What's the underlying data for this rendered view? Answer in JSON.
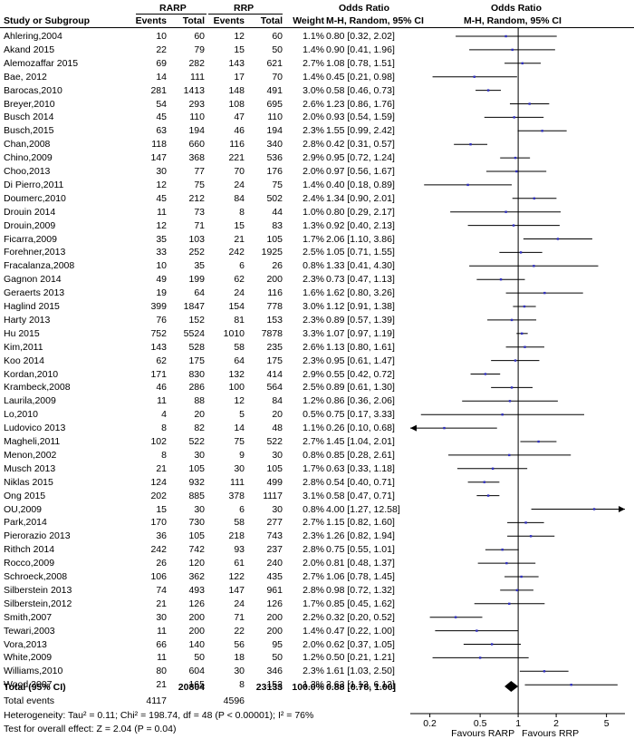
{
  "header": {
    "study_col": "Study or Subgroup",
    "group1": "RARP",
    "group2": "RRP",
    "events1": "Events",
    "total1": "Total",
    "events2": "Events",
    "total2": "Total",
    "weight": "Weight",
    "or_title": "Odds Ratio",
    "or_method": "M-H, Random, 95% CI",
    "plot_title": "Odds Ratio",
    "plot_method": "M-H, Random, 95% CI"
  },
  "total_row": {
    "label": "Total (95% CI)",
    "total1": "20804",
    "total2": "23133",
    "weight": "100.0%",
    "ci_text": "0.88 [0.78, 1.00]"
  },
  "events_row": {
    "label": "Total events",
    "events1": "4117",
    "events2": "4596"
  },
  "heterogeneity": "Heterogeneity: Tau² = 0.11; Chi² = 198.74, df = 48 (P < 0.00001); I² = 76%",
  "overall_effect": "Test for overall effect: Z = 2.04 (P = 0.04)",
  "chart_data": {
    "type": "forest",
    "x_scale": "log",
    "xlim": [
      0.14,
      7.0
    ],
    "reference_line": 1,
    "x_ticks": [
      "0.2",
      "0.5",
      "1",
      "2",
      "5"
    ],
    "x_tick_values": [
      0.2,
      0.5,
      1,
      2,
      5
    ],
    "favours_left": "Favours RARP",
    "favours_right": "Favours RRP",
    "summary": {
      "or": 0.88,
      "lo": 0.78,
      "hi": 1.0
    },
    "studies": [
      {
        "name": "Ahlering,2004",
        "e1": "10",
        "t1": "60",
        "e2": "12",
        "t2": "60",
        "w": "1.1%",
        "ci": "0.80 [0.32, 2.02]",
        "or": 0.8,
        "lo": 0.32,
        "hi": 2.02
      },
      {
        "name": "Akand 2015",
        "e1": "22",
        "t1": "79",
        "e2": "15",
        "t2": "50",
        "w": "1.4%",
        "ci": "0.90 [0.41, 1.96]",
        "or": 0.9,
        "lo": 0.41,
        "hi": 1.96
      },
      {
        "name": "Alemozaffar 2015",
        "e1": "69",
        "t1": "282",
        "e2": "143",
        "t2": "621",
        "w": "2.7%",
        "ci": "1.08 [0.78, 1.51]",
        "or": 1.08,
        "lo": 0.78,
        "hi": 1.51
      },
      {
        "name": "Bae, 2012",
        "e1": "14",
        "t1": "111",
        "e2": "17",
        "t2": "70",
        "w": "1.4%",
        "ci": "0.45 [0.21, 0.98]",
        "or": 0.45,
        "lo": 0.21,
        "hi": 0.98
      },
      {
        "name": "Barocas,2010",
        "e1": "281",
        "t1": "1413",
        "e2": "148",
        "t2": "491",
        "w": "3.0%",
        "ci": "0.58 [0.46, 0.73]",
        "or": 0.58,
        "lo": 0.46,
        "hi": 0.73
      },
      {
        "name": "Breyer,2010",
        "e1": "54",
        "t1": "293",
        "e2": "108",
        "t2": "695",
        "w": "2.6%",
        "ci": "1.23 [0.86, 1.76]",
        "or": 1.23,
        "lo": 0.86,
        "hi": 1.76
      },
      {
        "name": "Busch 2014",
        "e1": "45",
        "t1": "110",
        "e2": "47",
        "t2": "110",
        "w": "2.0%",
        "ci": "0.93 [0.54, 1.59]",
        "or": 0.93,
        "lo": 0.54,
        "hi": 1.59
      },
      {
        "name": "Busch,2015",
        "e1": "63",
        "t1": "194",
        "e2": "46",
        "t2": "194",
        "w": "2.3%",
        "ci": "1.55 [0.99, 2.42]",
        "or": 1.55,
        "lo": 0.99,
        "hi": 2.42
      },
      {
        "name": "Chan,2008",
        "e1": "118",
        "t1": "660",
        "e2": "116",
        "t2": "340",
        "w": "2.8%",
        "ci": "0.42 [0.31, 0.57]",
        "or": 0.42,
        "lo": 0.31,
        "hi": 0.57
      },
      {
        "name": "Chino,2009",
        "e1": "147",
        "t1": "368",
        "e2": "221",
        "t2": "536",
        "w": "2.9%",
        "ci": "0.95 [0.72, 1.24]",
        "or": 0.95,
        "lo": 0.72,
        "hi": 1.24
      },
      {
        "name": "Choo,2013",
        "e1": "30",
        "t1": "77",
        "e2": "70",
        "t2": "176",
        "w": "2.0%",
        "ci": "0.97 [0.56, 1.67]",
        "or": 0.97,
        "lo": 0.56,
        "hi": 1.67
      },
      {
        "name": "Di Pierro,2011",
        "e1": "12",
        "t1": "75",
        "e2": "24",
        "t2": "75",
        "w": "1.4%",
        "ci": "0.40 [0.18, 0.89]",
        "or": 0.4,
        "lo": 0.18,
        "hi": 0.89
      },
      {
        "name": "Doumerc,2010",
        "e1": "45",
        "t1": "212",
        "e2": "84",
        "t2": "502",
        "w": "2.4%",
        "ci": "1.34 [0.90, 2.01]",
        "or": 1.34,
        "lo": 0.9,
        "hi": 2.01
      },
      {
        "name": "Drouin 2014",
        "e1": "11",
        "t1": "73",
        "e2": "8",
        "t2": "44",
        "w": "1.0%",
        "ci": "0.80 [0.29, 2.17]",
        "or": 0.8,
        "lo": 0.29,
        "hi": 2.17
      },
      {
        "name": "Drouin,2009",
        "e1": "12",
        "t1": "71",
        "e2": "15",
        "t2": "83",
        "w": "1.3%",
        "ci": "0.92 [0.40, 2.13]",
        "or": 0.92,
        "lo": 0.4,
        "hi": 2.13
      },
      {
        "name": "Ficarra,2009",
        "e1": "35",
        "t1": "103",
        "e2": "21",
        "t2": "105",
        "w": "1.7%",
        "ci": "2.06 [1.10, 3.86]",
        "or": 2.06,
        "lo": 1.1,
        "hi": 3.86
      },
      {
        "name": "Forehner,2013",
        "e1": "33",
        "t1": "252",
        "e2": "242",
        "t2": "1925",
        "w": "2.5%",
        "ci": "1.05 [0.71, 1.55]",
        "or": 1.05,
        "lo": 0.71,
        "hi": 1.55
      },
      {
        "name": "Fracalanza,2008",
        "e1": "10",
        "t1": "35",
        "e2": "6",
        "t2": "26",
        "w": "0.8%",
        "ci": "1.33 [0.41, 4.30]",
        "or": 1.33,
        "lo": 0.41,
        "hi": 4.3
      },
      {
        "name": "Gagnon 2014",
        "e1": "49",
        "t1": "199",
        "e2": "62",
        "t2": "200",
        "w": "2.3%",
        "ci": "0.73 [0.47, 1.13]",
        "or": 0.73,
        "lo": 0.47,
        "hi": 1.13
      },
      {
        "name": "Geraerts 2013",
        "e1": "19",
        "t1": "64",
        "e2": "24",
        "t2": "116",
        "w": "1.6%",
        "ci": "1.62 [0.80, 3.26]",
        "or": 1.62,
        "lo": 0.8,
        "hi": 3.26
      },
      {
        "name": "Haglind 2015",
        "e1": "399",
        "t1": "1847",
        "e2": "154",
        "t2": "778",
        "w": "3.0%",
        "ci": "1.12 [0.91, 1.38]",
        "or": 1.12,
        "lo": 0.91,
        "hi": 1.38
      },
      {
        "name": "Harty 2013",
        "e1": "76",
        "t1": "152",
        "e2": "81",
        "t2": "153",
        "w": "2.3%",
        "ci": "0.89 [0.57, 1.39]",
        "or": 0.89,
        "lo": 0.57,
        "hi": 1.39
      },
      {
        "name": "Hu 2015",
        "e1": "752",
        "t1": "5524",
        "e2": "1010",
        "t2": "7878",
        "w": "3.3%",
        "ci": "1.07 [0.97, 1.19]",
        "or": 1.07,
        "lo": 0.97,
        "hi": 1.19
      },
      {
        "name": "Kim,2011",
        "e1": "143",
        "t1": "528",
        "e2": "58",
        "t2": "235",
        "w": "2.6%",
        "ci": "1.13 [0.80, 1.61]",
        "or": 1.13,
        "lo": 0.8,
        "hi": 1.61
      },
      {
        "name": "Koo 2014",
        "e1": "62",
        "t1": "175",
        "e2": "64",
        "t2": "175",
        "w": "2.3%",
        "ci": "0.95 [0.61, 1.47]",
        "or": 0.95,
        "lo": 0.61,
        "hi": 1.47
      },
      {
        "name": "Kordan,2010",
        "e1": "171",
        "t1": "830",
        "e2": "132",
        "t2": "414",
        "w": "2.9%",
        "ci": "0.55 [0.42, 0.72]",
        "or": 0.55,
        "lo": 0.42,
        "hi": 0.72
      },
      {
        "name": "Krambeck,2008",
        "e1": "46",
        "t1": "286",
        "e2": "100",
        "t2": "564",
        "w": "2.5%",
        "ci": "0.89 [0.61, 1.30]",
        "or": 0.89,
        "lo": 0.61,
        "hi": 1.3
      },
      {
        "name": "Laurila,2009",
        "e1": "11",
        "t1": "88",
        "e2": "12",
        "t2": "84",
        "w": "1.2%",
        "ci": "0.86 [0.36, 2.06]",
        "or": 0.86,
        "lo": 0.36,
        "hi": 2.06
      },
      {
        "name": "Lo,2010",
        "e1": "4",
        "t1": "20",
        "e2": "5",
        "t2": "20",
        "w": "0.5%",
        "ci": "0.75 [0.17, 3.33]",
        "or": 0.75,
        "lo": 0.17,
        "hi": 3.33
      },
      {
        "name": "Ludovico 2013",
        "e1": "8",
        "t1": "82",
        "e2": "14",
        "t2": "48",
        "w": "1.1%",
        "ci": "0.26 [0.10, 0.68]",
        "or": 0.26,
        "lo": 0.1,
        "hi": 0.68
      },
      {
        "name": "Magheli,2011",
        "e1": "102",
        "t1": "522",
        "e2": "75",
        "t2": "522",
        "w": "2.7%",
        "ci": "1.45 [1.04, 2.01]",
        "or": 1.45,
        "lo": 1.04,
        "hi": 2.01
      },
      {
        "name": "Menon,2002",
        "e1": "8",
        "t1": "30",
        "e2": "9",
        "t2": "30",
        "w": "0.8%",
        "ci": "0.85 [0.28, 2.61]",
        "or": 0.85,
        "lo": 0.28,
        "hi": 2.61
      },
      {
        "name": "Musch 2013",
        "e1": "21",
        "t1": "105",
        "e2": "30",
        "t2": "105",
        "w": "1.7%",
        "ci": "0.63 [0.33, 1.18]",
        "or": 0.63,
        "lo": 0.33,
        "hi": 1.18
      },
      {
        "name": "Niklas 2015",
        "e1": "124",
        "t1": "932",
        "e2": "111",
        "t2": "499",
        "w": "2.8%",
        "ci": "0.54 [0.40, 0.71]",
        "or": 0.54,
        "lo": 0.4,
        "hi": 0.71
      },
      {
        "name": "Ong 2015",
        "e1": "202",
        "t1": "885",
        "e2": "378",
        "t2": "1117",
        "w": "3.1%",
        "ci": "0.58 [0.47, 0.71]",
        "or": 0.58,
        "lo": 0.47,
        "hi": 0.71
      },
      {
        "name": "OU,2009",
        "e1": "15",
        "t1": "30",
        "e2": "6",
        "t2": "30",
        "w": "0.8%",
        "ci": "4.00 [1.27, 12.58]",
        "or": 4.0,
        "lo": 1.27,
        "hi": 12.58
      },
      {
        "name": "Park,2014",
        "e1": "170",
        "t1": "730",
        "e2": "58",
        "t2": "277",
        "w": "2.7%",
        "ci": "1.15 [0.82, 1.60]",
        "or": 1.15,
        "lo": 0.82,
        "hi": 1.6
      },
      {
        "name": "Pierorazio 2013",
        "e1": "36",
        "t1": "105",
        "e2": "218",
        "t2": "743",
        "w": "2.3%",
        "ci": "1.26 [0.82, 1.94]",
        "or": 1.26,
        "lo": 0.82,
        "hi": 1.94
      },
      {
        "name": "Rithch 2014",
        "e1": "242",
        "t1": "742",
        "e2": "93",
        "t2": "237",
        "w": "2.8%",
        "ci": "0.75 [0.55, 1.01]",
        "or": 0.75,
        "lo": 0.55,
        "hi": 1.01
      },
      {
        "name": "Rocco,2009",
        "e1": "26",
        "t1": "120",
        "e2": "61",
        "t2": "240",
        "w": "2.0%",
        "ci": "0.81 [0.48, 1.37]",
        "or": 0.81,
        "lo": 0.48,
        "hi": 1.37
      },
      {
        "name": "Schroeck,2008",
        "e1": "106",
        "t1": "362",
        "e2": "122",
        "t2": "435",
        "w": "2.7%",
        "ci": "1.06 [0.78, 1.45]",
        "or": 1.06,
        "lo": 0.78,
        "hi": 1.45
      },
      {
        "name": "Silberstein 2013",
        "e1": "74",
        "t1": "493",
        "e2": "147",
        "t2": "961",
        "w": "2.8%",
        "ci": "0.98 [0.72, 1.32]",
        "or": 0.98,
        "lo": 0.72,
        "hi": 1.32
      },
      {
        "name": "Silberstein,2012",
        "e1": "21",
        "t1": "126",
        "e2": "24",
        "t2": "126",
        "w": "1.7%",
        "ci": "0.85 [0.45, 1.62]",
        "or": 0.85,
        "lo": 0.45,
        "hi": 1.62
      },
      {
        "name": "Smith,2007",
        "e1": "30",
        "t1": "200",
        "e2": "71",
        "t2": "200",
        "w": "2.2%",
        "ci": "0.32 [0.20, 0.52]",
        "or": 0.32,
        "lo": 0.2,
        "hi": 0.52
      },
      {
        "name": "Tewari,2003",
        "e1": "11",
        "t1": "200",
        "e2": "22",
        "t2": "200",
        "w": "1.4%",
        "ci": "0.47 [0.22, 1.00]",
        "or": 0.47,
        "lo": 0.22,
        "hi": 1.0
      },
      {
        "name": "Vora,2013",
        "e1": "66",
        "t1": "140",
        "e2": "56",
        "t2": "95",
        "w": "2.0%",
        "ci": "0.62 [0.37, 1.05]",
        "or": 0.62,
        "lo": 0.37,
        "hi": 1.05
      },
      {
        "name": "White,2009",
        "e1": "11",
        "t1": "50",
        "e2": "18",
        "t2": "50",
        "w": "1.2%",
        "ci": "0.50 [0.21, 1.21]",
        "or": 0.5,
        "lo": 0.21,
        "hi": 1.21
      },
      {
        "name": "Williams,2010",
        "e1": "80",
        "t1": "604",
        "e2": "30",
        "t2": "346",
        "w": "2.3%",
        "ci": "1.61 [1.03, 2.50]",
        "or": 1.61,
        "lo": 1.03,
        "hi": 2.5
      },
      {
        "name": "Wood,2007",
        "e1": "21",
        "t1": "165",
        "e2": "8",
        "t2": "152",
        "w": "1.3%",
        "ci": "2.63 [1.13, 6.12]",
        "or": 2.63,
        "lo": 1.13,
        "hi": 6.12
      }
    ]
  }
}
